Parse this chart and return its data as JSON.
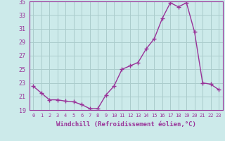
{
  "hours": [
    0,
    1,
    2,
    3,
    4,
    5,
    6,
    7,
    8,
    9,
    10,
    11,
    12,
    13,
    14,
    15,
    16,
    17,
    18,
    19,
    20,
    21,
    22,
    23
  ],
  "values": [
    22.5,
    21.5,
    20.5,
    20.5,
    20.3,
    20.2,
    19.8,
    19.2,
    19.2,
    21.2,
    22.5,
    25.0,
    25.5,
    26.0,
    28.0,
    29.5,
    32.5,
    34.8,
    34.2,
    34.8,
    30.5,
    23.0,
    22.8,
    22.0
  ],
  "ylim": [
    19,
    35
  ],
  "yticks": [
    19,
    21,
    23,
    25,
    27,
    29,
    31,
    33,
    35
  ],
  "xlabel": "Windchill (Refroidissement éolien,°C)",
  "line_color": "#993399",
  "marker": "+",
  "marker_size": 4,
  "marker_linewidth": 1.0,
  "linewidth": 1.0,
  "bg_color": "#cceaea",
  "grid_color": "#aacccc",
  "axis_label_color": "#993399",
  "tick_label_color": "#993399",
  "font_family": "monospace",
  "xlabel_fontsize": 6.5,
  "xlabel_fontweight": "bold",
  "ytick_fontsize": 6,
  "xtick_fontsize": 5
}
